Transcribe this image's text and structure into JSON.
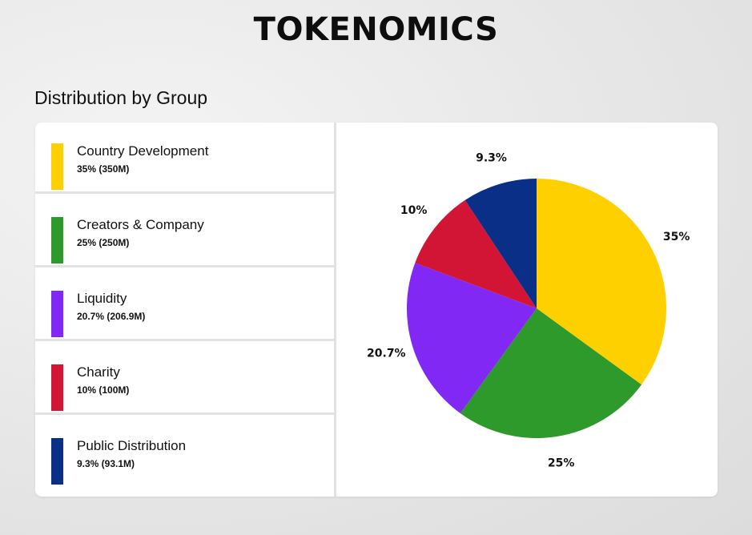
{
  "page": {
    "title": "TOKENOMICS",
    "subtitle": "Distribution by Group"
  },
  "legend": [
    {
      "name": "Country Development",
      "value": "35% (350M)",
      "color": "#FFD000"
    },
    {
      "name": "Creators & Company",
      "value": "25% (250M)",
      "color": "#2E9A2B"
    },
    {
      "name": "Liquidity",
      "value": "20.7% (206.9M)",
      "color": "#8128F5"
    },
    {
      "name": "Charity",
      "value": "10% (100M)",
      "color": "#D21435"
    },
    {
      "name": "Public Distribution",
      "value": "9.3% (93.1M)",
      "color": "#0A2F86"
    }
  ],
  "chart_data": {
    "type": "pie",
    "categories": [
      "Country Development",
      "Creators & Company",
      "Liquidity",
      "Charity",
      "Public Distribution"
    ],
    "values": [
      35,
      25,
      20.7,
      10,
      9.3
    ],
    "labels": [
      "35%",
      "25%",
      "20.7%",
      "10%",
      "9.3%"
    ],
    "colors": [
      "#FFD000",
      "#2E9A2B",
      "#8128F5",
      "#D21435",
      "#0A2F86"
    ],
    "start": "12 o'clock",
    "direction": "clockwise"
  }
}
